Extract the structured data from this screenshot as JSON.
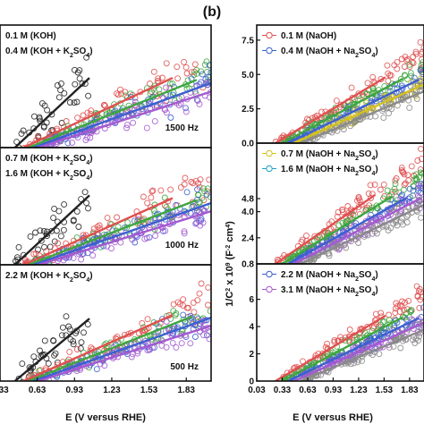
{
  "panel_label": "(b)",
  "series_colors": {
    "red": "#e05050",
    "green": "#3fa63f",
    "blue": "#3c60d0",
    "purple": "#a35ad0",
    "grey": "#8a8a8a",
    "black": "#222222",
    "yellow": "#d4c020",
    "cyan": "#1aa3c8"
  },
  "chart_data": [
    {
      "type": "scatter",
      "id": "left-top",
      "xlim": [
        0.33,
        2.03
      ],
      "ylim": [
        0.8,
        8.4
      ],
      "xticks": [],
      "yticks": [],
      "annotation": "1500 Hz",
      "legend": [
        {
          "parts": [
            {
              "t": "0.1 M (KOH)"
            }
          ]
        },
        {
          "parts": [
            {
              "t": "0.4 M (KOH + K"
            },
            {
              "t": "2",
              "sub": true
            },
            {
              "t": "SO"
            },
            {
              "t": "4",
              "sub": true
            },
            {
              "t": ")"
            }
          ]
        }
      ],
      "series": [
        {
          "color": "black",
          "x0": 0.45,
          "x1": 1.05,
          "y0": 0.8,
          "slope": 7.2,
          "noise": 1.4,
          "n": 40
        },
        {
          "color": "red",
          "x0": 0.52,
          "x1": 2.03,
          "y0": 0.8,
          "slope": 3.6,
          "noise": 0.55,
          "n": 75
        },
        {
          "color": "green",
          "x0": 0.56,
          "x1": 2.03,
          "y0": 0.8,
          "slope": 3.1,
          "noise": 0.45,
          "n": 75
        },
        {
          "color": "blue",
          "x0": 0.6,
          "x1": 2.03,
          "y0": 0.8,
          "slope": 2.8,
          "noise": 0.45,
          "n": 75
        },
        {
          "color": "purple",
          "x0": 0.64,
          "x1": 2.03,
          "y0": 0.8,
          "slope": 2.5,
          "noise": 0.45,
          "n": 75
        }
      ]
    },
    {
      "type": "scatter",
      "id": "left-mid",
      "xlim": [
        0.33,
        2.03
      ],
      "ylim": [
        0.8,
        8.4
      ],
      "xticks": [],
      "yticks": [],
      "annotation": "1000 Hz",
      "legend": [
        {
          "parts": [
            {
              "t": "0.7 M (KOH + K"
            },
            {
              "t": "2",
              "sub": true
            },
            {
              "t": "SO"
            },
            {
              "t": "4",
              "sub": true
            },
            {
              "t": ")"
            }
          ]
        },
        {
          "parts": [
            {
              "t": "1.6 M (KOH + K"
            },
            {
              "t": "2",
              "sub": true
            },
            {
              "t": "SO"
            },
            {
              "t": "4",
              "sub": true
            },
            {
              "t": ")"
            }
          ]
        }
      ],
      "series": [
        {
          "color": "black",
          "x0": 0.45,
          "x1": 1.05,
          "y0": 0.8,
          "slope": 7.5,
          "noise": 1.4,
          "n": 40
        },
        {
          "color": "red",
          "x0": 0.52,
          "x1": 2.03,
          "y0": 0.8,
          "slope": 3.6,
          "noise": 0.55,
          "n": 75
        },
        {
          "color": "green",
          "x0": 0.56,
          "x1": 2.03,
          "y0": 0.8,
          "slope": 3.1,
          "noise": 0.45,
          "n": 75
        },
        {
          "color": "blue",
          "x0": 0.6,
          "x1": 2.03,
          "y0": 0.8,
          "slope": 2.8,
          "noise": 0.45,
          "n": 75
        },
        {
          "color": "purple",
          "x0": 0.64,
          "x1": 2.03,
          "y0": 0.8,
          "slope": 2.5,
          "noise": 0.45,
          "n": 75
        }
      ]
    },
    {
      "type": "scatter",
      "id": "left-bot",
      "xlim": [
        0.33,
        2.03
      ],
      "ylim": [
        0.8,
        8.4
      ],
      "xticks": [
        0.33,
        0.63,
        0.93,
        1.23,
        1.53,
        1.83
      ],
      "yticks": [],
      "annotation": "500 Hz",
      "legend": [
        {
          "parts": [
            {
              "t": "2.2 M (KOH + K"
            },
            {
              "t": "2",
              "sub": true
            },
            {
              "t": "SO"
            },
            {
              "t": "4",
              "sub": true
            },
            {
              "t": ")"
            }
          ]
        }
      ],
      "series": [
        {
          "color": "black",
          "x0": 0.45,
          "x1": 1.05,
          "y0": 0.8,
          "slope": 6.8,
          "noise": 1.2,
          "n": 40
        },
        {
          "color": "red",
          "x0": 0.52,
          "x1": 2.03,
          "y0": 0.8,
          "slope": 3.6,
          "noise": 0.5,
          "n": 75
        },
        {
          "color": "green",
          "x0": 0.56,
          "x1": 2.03,
          "y0": 0.8,
          "slope": 3.2,
          "noise": 0.45,
          "n": 75
        },
        {
          "color": "blue",
          "x0": 0.6,
          "x1": 2.03,
          "y0": 0.8,
          "slope": 2.9,
          "noise": 0.45,
          "n": 75
        },
        {
          "color": "purple",
          "x0": 0.64,
          "x1": 2.03,
          "y0": 0.8,
          "slope": 2.6,
          "noise": 0.45,
          "n": 75
        }
      ]
    },
    {
      "type": "scatter",
      "id": "right-top",
      "xlim": [
        0.03,
        2.0
      ],
      "ylim": [
        0.0,
        8.6
      ],
      "xticks": [],
      "yticks": [
        0.0,
        2.5,
        5.0,
        7.5
      ],
      "legend": [
        {
          "marker": "red",
          "parts": [
            {
              "t": "0.1 M (NaOH)"
            }
          ]
        },
        {
          "marker": "blue",
          "parts": [
            {
              "t": "0.4 M (NaOH + Na"
            },
            {
              "t": "2",
              "sub": true
            },
            {
              "t": "SO"
            },
            {
              "t": "4",
              "sub": true
            },
            {
              "t": ")"
            }
          ]
        }
      ],
      "series": [
        {
          "color": "red",
          "x0": 0.25,
          "x1": 2.0,
          "y0": 0.0,
          "slope": 3.7,
          "noise": 0.35,
          "n": 80
        },
        {
          "color": "green",
          "x0": 0.33,
          "x1": 2.0,
          "y0": 0.0,
          "slope": 3.3,
          "noise": 0.3,
          "n": 80
        },
        {
          "color": "blue",
          "x0": 0.4,
          "x1": 2.0,
          "y0": 0.0,
          "slope": 3.0,
          "noise": 0.3,
          "n": 80
        },
        {
          "color": "yellow",
          "x0": 0.47,
          "x1": 2.0,
          "y0": 0.0,
          "slope": 2.8,
          "noise": 0.3,
          "n": 80
        },
        {
          "color": "grey",
          "x0": 0.55,
          "x1": 2.0,
          "y0": 0.0,
          "slope": 2.6,
          "noise": 0.3,
          "n": 80
        }
      ]
    },
    {
      "type": "scatter",
      "id": "right-mid",
      "xlim": [
        0.03,
        2.0
      ],
      "ylim": [
        0.8,
        8.2
      ],
      "xticks": [],
      "yticks": [
        0.8,
        2.4,
        4.0,
        4.8
      ],
      "legend": [
        {
          "marker": "yellow",
          "parts": [
            {
              "t": "0.7 M (NaOH + Na"
            },
            {
              "t": "2",
              "sub": true
            },
            {
              "t": "SO"
            },
            {
              "t": "4",
              "sub": true
            },
            {
              "t": ")"
            }
          ]
        },
        {
          "marker": "cyan",
          "parts": [
            {
              "t": "1.6 M (NaOH + Na"
            },
            {
              "t": "2",
              "sub": true
            },
            {
              "t": "SO"
            },
            {
              "t": "4",
              "sub": true
            },
            {
              "t": ")"
            }
          ]
        }
      ],
      "series": [
        {
          "color": "red",
          "x0": 0.25,
          "x1": 2.0,
          "y0": 0.8,
          "slope": 3.6,
          "noise": 0.35,
          "n": 80
        },
        {
          "color": "green",
          "x0": 0.33,
          "x1": 2.0,
          "y0": 0.8,
          "slope": 3.2,
          "noise": 0.3,
          "n": 80
        },
        {
          "color": "blue",
          "x0": 0.4,
          "x1": 2.0,
          "y0": 0.8,
          "slope": 2.9,
          "noise": 0.3,
          "n": 80
        },
        {
          "color": "purple",
          "x0": 0.47,
          "x1": 2.0,
          "y0": 0.8,
          "slope": 2.7,
          "noise": 0.3,
          "n": 80
        },
        {
          "color": "grey",
          "x0": 0.55,
          "x1": 2.0,
          "y0": 0.8,
          "slope": 2.5,
          "noise": 0.3,
          "n": 80
        }
      ]
    },
    {
      "type": "scatter",
      "id": "right-bot",
      "xlim": [
        0.03,
        2.0
      ],
      "ylim": [
        0.0,
        8.6
      ],
      "xticks": [
        0.03,
        0.33,
        0.63,
        0.93,
        1.23,
        1.53,
        1.83
      ],
      "yticks": [
        0,
        2,
        4,
        6
      ],
      "legend": [
        {
          "marker": "blue",
          "parts": [
            {
              "t": "2.2 M (NaOH + Na"
            },
            {
              "t": "2",
              "sub": true
            },
            {
              "t": "SO"
            },
            {
              "t": "4",
              "sub": true
            },
            {
              "t": ")"
            }
          ]
        },
        {
          "marker": "purple",
          "parts": [
            {
              "t": "3.1 M (NaOH + Na"
            },
            {
              "t": "2",
              "sub": true
            },
            {
              "t": "SO"
            },
            {
              "t": "4",
              "sub": true
            },
            {
              "t": ")"
            }
          ]
        }
      ],
      "series": [
        {
          "color": "red",
          "x0": 0.25,
          "x1": 2.0,
          "y0": 0.0,
          "slope": 3.7,
          "noise": 0.35,
          "n": 80
        },
        {
          "color": "green",
          "x0": 0.33,
          "x1": 2.0,
          "y0": 0.0,
          "slope": 3.3,
          "noise": 0.3,
          "n": 80
        },
        {
          "color": "blue",
          "x0": 0.4,
          "x1": 2.0,
          "y0": 0.0,
          "slope": 3.0,
          "noise": 0.3,
          "n": 80
        },
        {
          "color": "purple",
          "x0": 0.47,
          "x1": 2.0,
          "y0": 0.0,
          "slope": 2.8,
          "noise": 0.3,
          "n": 80
        },
        {
          "color": "grey",
          "x0": 0.55,
          "x1": 2.0,
          "y0": 0.0,
          "slope": 2.6,
          "noise": 0.3,
          "n": 80
        }
      ]
    }
  ],
  "axes_labels": {
    "left_xlabel": "E (V versus RHE)",
    "right_xlabel": "E (V versus RHE)",
    "right_ylabel_parts": [
      {
        "t": "1/C"
      },
      {
        "t": "2",
        "sup": true
      },
      {
        "t": " x 10"
      },
      {
        "t": "9",
        "sup": true
      },
      {
        "t": " (F"
      },
      {
        "t": "-2",
        "sup": true
      },
      {
        "t": " cm"
      },
      {
        "t": "4",
        "sup": true
      },
      {
        "t": ")"
      }
    ]
  }
}
